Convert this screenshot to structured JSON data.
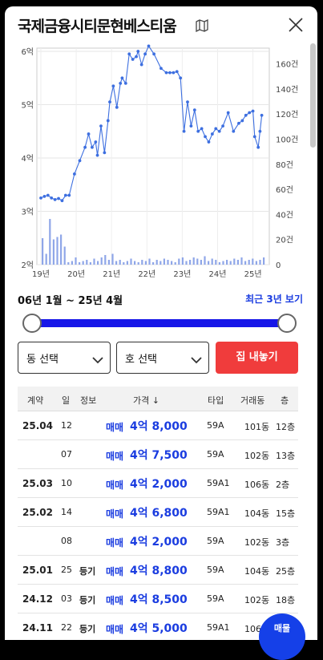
{
  "header": {
    "title": "국제금융시티문현베스티움",
    "map_icon": "map-icon",
    "close_icon": "close-icon"
  },
  "chart_data": {
    "type": "line+bar",
    "x_tick_labels": [
      "19년",
      "20년",
      "21년",
      "22년",
      "23년",
      "24년",
      "25년"
    ],
    "left_axis": {
      "tick_labels": [
        "2억",
        "3억",
        "4억",
        "5억",
        "6억"
      ],
      "ylim": [
        2,
        6
      ],
      "unit": "억"
    },
    "right_axis": {
      "tick_labels": [
        "0",
        "20건",
        "40건",
        "60건",
        "80건",
        "100건",
        "120건",
        "140건",
        "160건"
      ],
      "ylim": [
        0,
        170
      ],
      "unit": "건"
    },
    "price_series": {
      "x": [
        2019.0,
        2019.1,
        2019.2,
        2019.3,
        2019.4,
        2019.5,
        2019.6,
        2019.7,
        2019.8,
        2019.95,
        2020.1,
        2020.25,
        2020.35,
        2020.45,
        2020.55,
        2020.6,
        2020.7,
        2020.8,
        2020.9,
        2020.95,
        2021.05,
        2021.15,
        2021.25,
        2021.3,
        2021.4,
        2021.5,
        2021.6,
        2021.7,
        2021.75,
        2021.85,
        2021.95,
        2022.05,
        2022.2,
        2022.4,
        2022.55,
        2022.65,
        2022.75,
        2022.85,
        2022.95,
        2023.05,
        2023.15,
        2023.25,
        2023.35,
        2023.45,
        2023.55,
        2023.65,
        2023.75,
        2023.85,
        2023.95,
        2024.05,
        2024.15,
        2024.3,
        2024.45,
        2024.6,
        2024.7,
        2024.8,
        2024.9,
        2025.0,
        2025.05,
        2025.15,
        2025.2,
        2025.25
      ],
      "y": [
        3.25,
        3.28,
        3.3,
        3.25,
        3.22,
        3.24,
        3.2,
        3.3,
        3.3,
        3.7,
        3.95,
        4.2,
        4.45,
        4.2,
        4.3,
        4.05,
        4.6,
        4.1,
        4.7,
        5.05,
        5.35,
        4.95,
        5.4,
        5.5,
        5.4,
        5.95,
        5.85,
        5.9,
        6.0,
        5.75,
        5.95,
        6.1,
        5.95,
        5.68,
        5.6,
        5.6,
        5.6,
        5.62,
        5.5,
        4.5,
        5.05,
        4.6,
        4.9,
        4.5,
        4.55,
        4.4,
        4.3,
        4.45,
        4.55,
        4.5,
        4.6,
        4.85,
        4.5,
        4.65,
        4.7,
        4.8,
        4.85,
        4.88,
        4.4,
        4.2,
        4.5,
        4.8
      ],
      "color": "#3d6fe0"
    },
    "volume_series": {
      "color": "#8fa6e8",
      "note": "monthly transaction count bars (건)"
    },
    "grid": true
  },
  "range": {
    "label": "06년 1월 ~ 25년 4월",
    "recent_link": "최근 3년 보기",
    "slider_start": 0.0,
    "slider_end": 1.0
  },
  "filters": {
    "dong": "동 선택",
    "ho": "호 선택",
    "list_button": "집 내놓기"
  },
  "table": {
    "headers": {
      "contract": "계약",
      "day": "일",
      "info": "정보",
      "price": "가격 ↓",
      "type": "타입",
      "building": "거래동",
      "floor": "층"
    },
    "rows": [
      {
        "ym": "25.04",
        "day": "12",
        "info": "",
        "trade": "매매",
        "price": "4억 8,000",
        "type": "59A",
        "building": "101동",
        "floor": "12층"
      },
      {
        "ym": "",
        "day": "07",
        "info": "",
        "trade": "매매",
        "price": "4억 7,500",
        "type": "59A",
        "building": "102동",
        "floor": "13층"
      },
      {
        "ym": "25.03",
        "day": "10",
        "info": "",
        "trade": "매매",
        "price": "4억 2,000",
        "type": "59A1",
        "building": "106동",
        "floor": "2층"
      },
      {
        "ym": "25.02",
        "day": "14",
        "info": "",
        "trade": "매매",
        "price": "4억 6,800",
        "type": "59A1",
        "building": "104동",
        "floor": "15층"
      },
      {
        "ym": "",
        "day": "08",
        "info": "",
        "trade": "매매",
        "price": "4억 2,000",
        "type": "59A",
        "building": "102동",
        "floor": "3층"
      },
      {
        "ym": "25.01",
        "day": "25",
        "info": "등기",
        "trade": "매매",
        "price": "4억 8,800",
        "type": "59A",
        "building": "104동",
        "floor": "25층"
      },
      {
        "ym": "24.12",
        "day": "03",
        "info": "등기",
        "trade": "매매",
        "price": "4억 8,500",
        "type": "59A",
        "building": "102동",
        "floor": "18층"
      },
      {
        "ym": "24.11",
        "day": "22",
        "info": "등기",
        "trade": "매매",
        "price": "4억 5,000",
        "type": "59A1",
        "building": "106동",
        "floor": ""
      }
    ]
  },
  "fab": {
    "label": "매물"
  },
  "colors": {
    "accent": "#1a3ce0",
    "slider": "#1717e8",
    "cta": "#f03c3c"
  }
}
